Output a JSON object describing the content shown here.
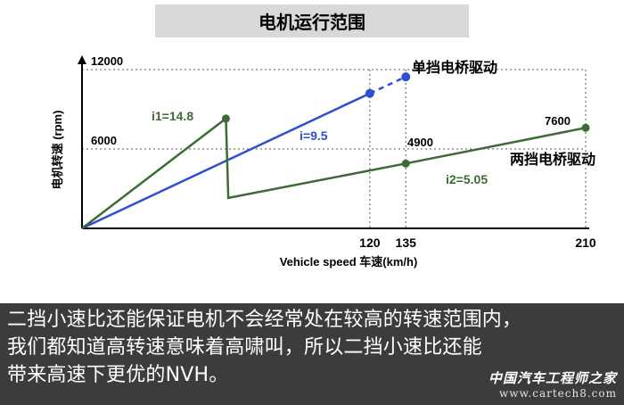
{
  "chart_data": {
    "type": "line",
    "title": "电机运行范围",
    "ylabel": "电机转速 (rpm)",
    "xlabel": "Vehicle speed 车速(km/h)",
    "xlim": [
      0,
      210
    ],
    "ylim": [
      0,
      12000
    ],
    "grid": true,
    "x_ticks": [
      "120",
      "135",
      "210"
    ],
    "y_ticks": [
      "12000",
      "6000"
    ],
    "series": [
      {
        "name": "单挡电桥驱动",
        "color": "#2f4fd0",
        "points": [
          [
            0,
            0
          ],
          [
            120,
            10200
          ]
        ],
        "dashed_extension": [
          [
            120,
            10200
          ],
          [
            135,
            11450
          ]
        ],
        "ratio_label": "i=9.5"
      },
      {
        "name": "两挡电桥驱动",
        "color": "#3d6b35",
        "points": [
          [
            0,
            0
          ],
          [
            60,
            8300
          ],
          [
            61,
            2300
          ],
          [
            135,
            4900
          ],
          [
            210,
            7600
          ]
        ],
        "ratio_labels": [
          "i1=14.8",
          "i2=5.05"
        ]
      }
    ],
    "annotations": [
      "4900",
      "7600"
    ]
  },
  "caption": {
    "lines": [
      "二挡小速比还能保证电机不会经常处在较高的转速范围内，",
      "我们都知道高转速意味着高啸叫，所以二挡小速比还能",
      "带来高速下更优的NVH。"
    ]
  },
  "watermark": {
    "title": "中国汽车工程师之家",
    "url": "www.cartech8.com"
  }
}
